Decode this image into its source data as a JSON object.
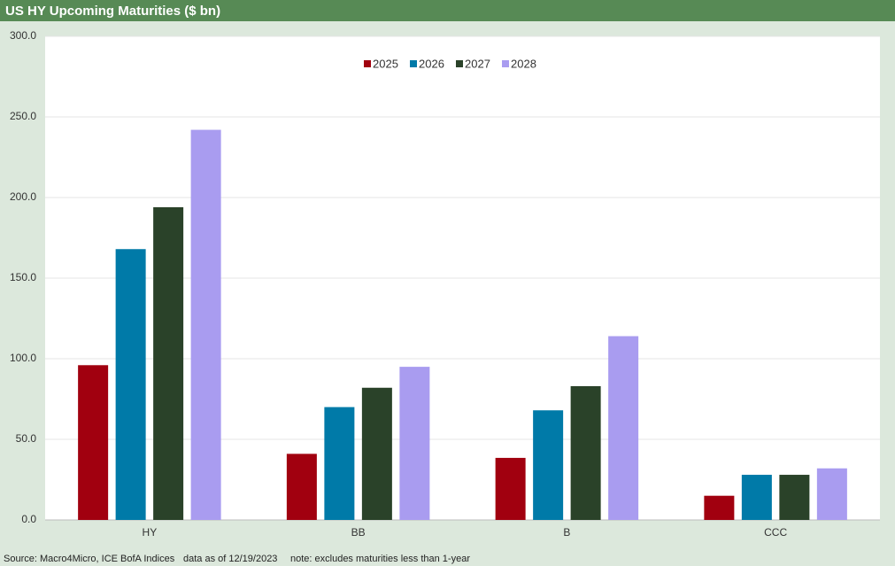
{
  "chart_data": {
    "type": "bar",
    "title": "US HY Upcoming Maturities ($ bn)",
    "categories": [
      "HY",
      "BB",
      "B",
      "CCC"
    ],
    "series": [
      {
        "name": "2025",
        "color": "#a1000f",
        "values": [
          96,
          41,
          38.5,
          15
        ]
      },
      {
        "name": "2026",
        "color": "#007aa8",
        "values": [
          168,
          70,
          68,
          28
        ]
      },
      {
        "name": "2027",
        "color": "#2a4229",
        "values": [
          194,
          82,
          83,
          28
        ]
      },
      {
        "name": "2028",
        "color": "#a99cf0",
        "values": [
          242,
          95,
          114,
          32
        ]
      }
    ],
    "ylim": [
      0,
      300
    ],
    "yticks": [
      {
        "value": 0,
        "label": "0.0"
      },
      {
        "value": 50,
        "label": "50.0"
      },
      {
        "value": 100,
        "label": "100.0"
      },
      {
        "value": 150,
        "label": "150.0"
      },
      {
        "value": 200,
        "label": "200.0"
      },
      {
        "value": 250,
        "label": "250.0"
      },
      {
        "value": 300,
        "label": "300.0"
      }
    ],
    "grid": true,
    "legend": "top",
    "footnotes": [
      "Source: Macro4Micro, ICE BofA Indices",
      "data as of 12/19/2023",
      "note: excludes maturities less than 1-year"
    ]
  }
}
